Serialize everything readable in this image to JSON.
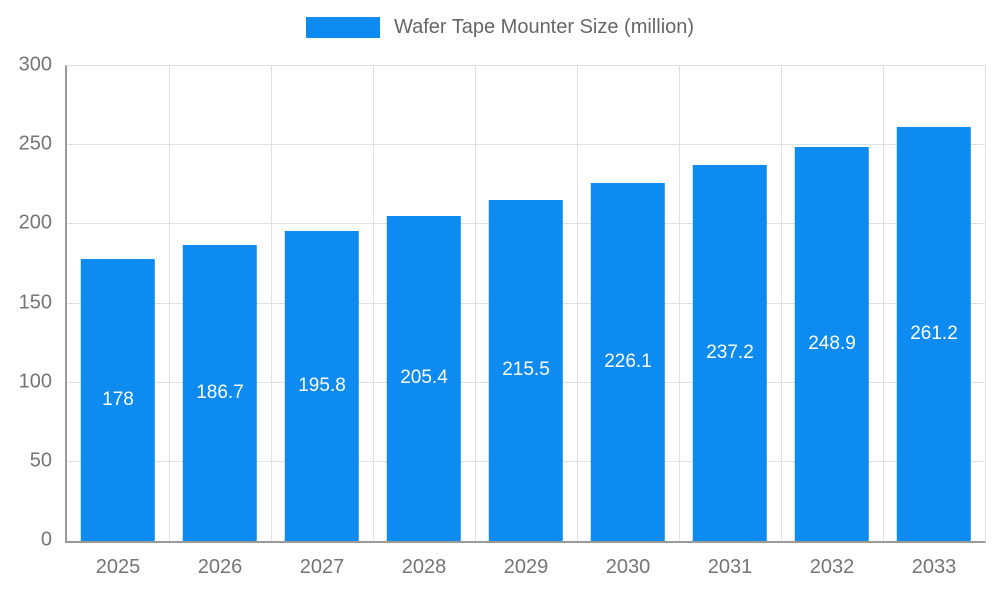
{
  "legend": {
    "label": "Wafer Tape Mounter Size (million)"
  },
  "chart_data": {
    "type": "bar",
    "title": "Wafer Tape Mounter Size (million)",
    "categories": [
      "2025",
      "2026",
      "2027",
      "2028",
      "2029",
      "2030",
      "2031",
      "2032",
      "2033"
    ],
    "values": [
      178,
      186.7,
      195.8,
      205.4,
      215.5,
      226.1,
      237.2,
      248.9,
      261.2
    ],
    "xlabel": "",
    "ylabel": "",
    "ylim": [
      0,
      300
    ],
    "yticks": [
      0,
      50,
      100,
      150,
      200,
      250,
      300
    ],
    "grid": true,
    "legend_position": "top",
    "bar_color": "#0d8bf0",
    "value_label_color": "#ffffff",
    "grid_color": "#e0e0e0",
    "axis_color": "#9a9a9a",
    "tick_text_color": "#757575",
    "bar_width_fraction": 0.73
  }
}
